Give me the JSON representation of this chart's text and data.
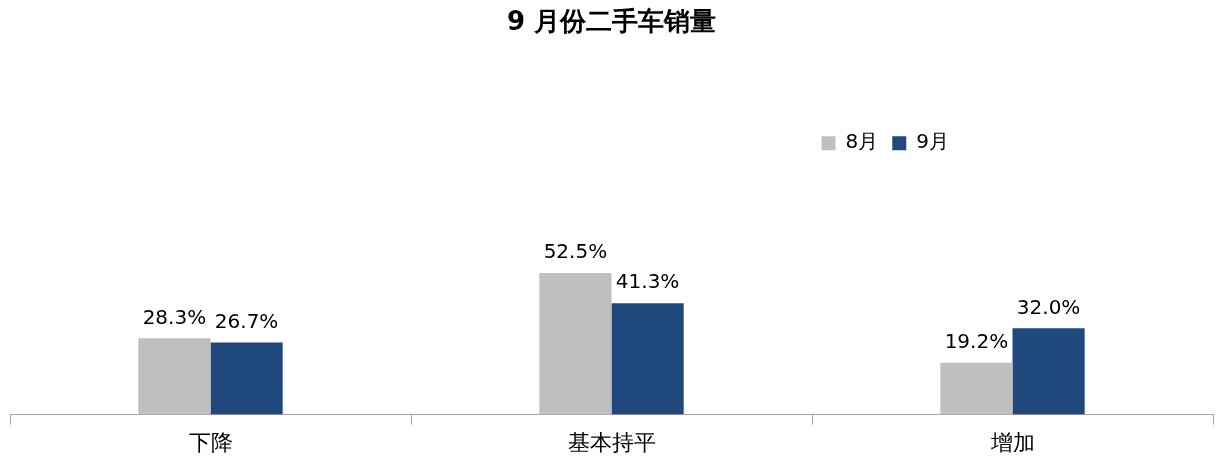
{
  "chart_data": {
    "type": "bar",
    "title": "9 月份二手车销量",
    "categories": [
      "下降",
      "基本持平",
      "增加"
    ],
    "series": [
      {
        "name": "8月",
        "color": "#bfbfbf",
        "values": [
          28.3,
          52.5,
          19.2
        ],
        "value_labels": [
          "28.3%",
          "52.5%",
          "19.2%"
        ]
      },
      {
        "name": "9月",
        "color": "#1f497d",
        "values": [
          26.7,
          41.3,
          32.0
        ],
        "value_labels": [
          "26.7%",
          "41.3%",
          "32.0%"
        ]
      }
    ],
    "grid": false,
    "legend": "top right"
  }
}
